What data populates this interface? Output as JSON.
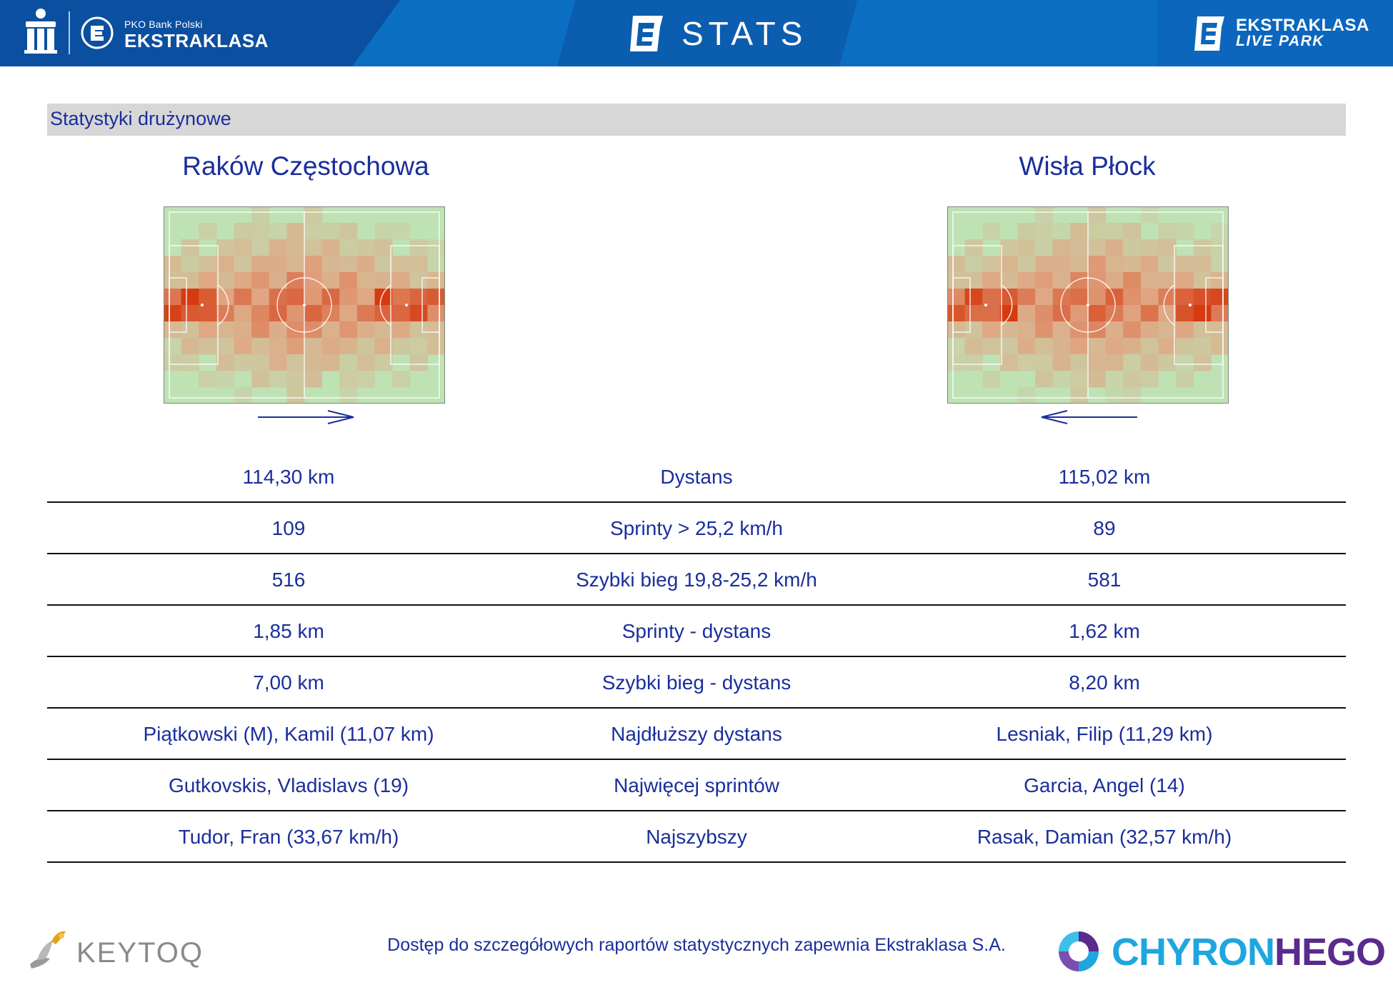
{
  "header": {
    "bank_small": "PKO Bank Polski",
    "league": "EKSTRAKLASA",
    "stats_title": "STATS",
    "livepark_top": "EKSTRAKLASA",
    "livepark_bottom": "LIVE PARK",
    "colors": {
      "band": "#0a6fc2",
      "dark": "#0b4fa0"
    }
  },
  "section": {
    "title": "Statystyki drużynowe"
  },
  "teams": {
    "home": {
      "name": "Raków Częstochowa",
      "attack_direction": "right"
    },
    "away": {
      "name": "Wisła Płock",
      "attack_direction": "left"
    }
  },
  "heatmap_colors": {
    "pitch": "#bfe2b5",
    "hot": "#d63a10",
    "mid": "#e0a582",
    "line": "#ffffff"
  },
  "stats": [
    {
      "label": "Dystans",
      "home": "114,30 km",
      "away": "115,02 km"
    },
    {
      "label": "Sprinty > 25,2 km/h",
      "home": "109",
      "away": "89"
    },
    {
      "label": "Szybki bieg 19,8-25,2 km/h",
      "home": "516",
      "away": "581"
    },
    {
      "label": "Sprinty - dystans",
      "home": "1,85 km",
      "away": "1,62 km"
    },
    {
      "label": "Szybki bieg - dystans",
      "home": "7,00 km",
      "away": "8,20 km"
    },
    {
      "label": "Najdłuższy dystans",
      "home": "Piątkowski (M), Kamil (11,07 km)",
      "away": "Lesniak, Filip (11,29 km)"
    },
    {
      "label": "Najwięcej sprintów",
      "home": "Gutkovskis, Vladislavs (19)",
      "away": "Garcia, Angel (14)"
    },
    {
      "label": "Najszybszy",
      "home": "Tudor, Fran (33,67 km/h)",
      "away": "Rasak, Damian (32,57 km/h)"
    }
  ],
  "footer": {
    "keytoq": "KEYTOQ",
    "note": "Dostęp do szczegółowych raportów statystycznych zapewnia Ekstraklasa S.A.",
    "chyron_part1": "CHYRON",
    "chyron_part2": "HEGO"
  }
}
